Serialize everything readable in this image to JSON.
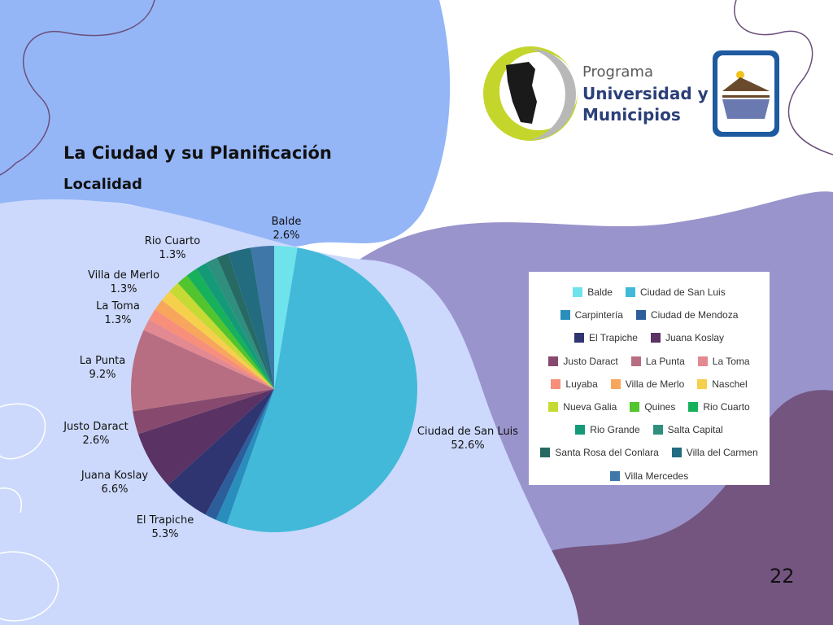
{
  "slide": {
    "title": "La Ciudad y su Planificación",
    "subtitle": "Localidad",
    "page_number": "22"
  },
  "logo": {
    "line1": "Programa",
    "line2": "Universidad y",
    "line3": "Municipios",
    "colors": {
      "ring_green": "#c4d62c",
      "ring_grey": "#b8b8b8",
      "text": "#2b3f78",
      "shield": "#1e5aa0"
    }
  },
  "colors": {
    "background_blue": "#94b6f7",
    "background_light": "#ccd9fc",
    "background_purple": "#9a94cc",
    "background_dark_purple": "#73557f"
  },
  "chart_data": {
    "type": "pie",
    "start": "top",
    "direction": "clockwise",
    "slices": [
      {
        "name": "Balde",
        "value": 2.6,
        "color": "#6fe3ec",
        "label": "Balde",
        "pct": "2.6%"
      },
      {
        "name": "Ciudad de San Luis",
        "value": 52.6,
        "color": "#43b9d9",
        "label": "Ciudad de San Luis",
        "pct": "52.6%"
      },
      {
        "name": "Carpintería",
        "value": 1.3,
        "color": "#2a8ebd",
        "label": "",
        "pct": ""
      },
      {
        "name": "Ciudad de Mendoza",
        "value": 1.3,
        "color": "#2d5e9c",
        "label": "",
        "pct": ""
      },
      {
        "name": "El Trapiche",
        "value": 5.3,
        "color": "#2e3570",
        "label": "El Trapiche",
        "pct": "5.3%"
      },
      {
        "name": "Juana Koslay",
        "value": 6.6,
        "color": "#5a3264",
        "label": "Juana Koslay",
        "pct": "6.6%"
      },
      {
        "name": "Justo Daract",
        "value": 2.6,
        "color": "#874a6e",
        "label": "Justo Daract",
        "pct": "2.6%"
      },
      {
        "name": "La Punta",
        "value": 9.2,
        "color": "#b86e82",
        "label": "La Punta",
        "pct": "9.2%"
      },
      {
        "name": "La Toma",
        "value": 1.3,
        "color": "#e38991",
        "label": "La Toma",
        "pct": "1.3%"
      },
      {
        "name": "Luyaba",
        "value": 1.3,
        "color": "#f78f7a",
        "label": "",
        "pct": ""
      },
      {
        "name": "Villa de Merlo",
        "value": 1.3,
        "color": "#f9a65d",
        "label": "Villa de Merlo",
        "pct": "1.3%"
      },
      {
        "name": "Naschel",
        "value": 1.3,
        "color": "#f6cf4d",
        "label": "",
        "pct": ""
      },
      {
        "name": "Nueva Galia",
        "value": 1.3,
        "color": "#c6da34",
        "label": "",
        "pct": ""
      },
      {
        "name": "Quines",
        "value": 1.3,
        "color": "#52c42e",
        "label": "",
        "pct": ""
      },
      {
        "name": "Rio Cuarto",
        "value": 1.3,
        "color": "#16b15a",
        "label": "Rio Cuarto",
        "pct": "1.3%"
      },
      {
        "name": "Rio Grande",
        "value": 1.3,
        "color": "#159a78",
        "label": "",
        "pct": ""
      },
      {
        "name": "Salta Capital",
        "value": 1.3,
        "color": "#2e8f7e",
        "label": "",
        "pct": ""
      },
      {
        "name": "Santa Rosa del Conlara",
        "value": 1.3,
        "color": "#276a63",
        "label": "",
        "pct": ""
      },
      {
        "name": "Villa del Carmen",
        "value": 2.6,
        "color": "#236c80",
        "label": "",
        "pct": ""
      },
      {
        "name": "Villa Mercedes",
        "value": 2.6,
        "color": "#3f77a8",
        "label": "",
        "pct": ""
      }
    ],
    "legend": {
      "rows": [
        [
          "Balde",
          "Ciudad de San Luis"
        ],
        [
          "Carpintería",
          "Ciudad de Mendoza"
        ],
        [
          "El Trapiche",
          "Juana Koslay"
        ],
        [
          "Justo Daract",
          "La Punta",
          "La Toma"
        ],
        [
          "Luyaba",
          "Villa de Merlo",
          "Naschel"
        ],
        [
          "Nueva Galia",
          "Quines",
          "Rio Cuarto"
        ],
        [
          "Rio Grande",
          "Salta Capital"
        ],
        [
          "Santa Rosa del Conlara",
          "Villa del Carmen"
        ],
        [
          "Villa Mercedes"
        ]
      ]
    }
  }
}
